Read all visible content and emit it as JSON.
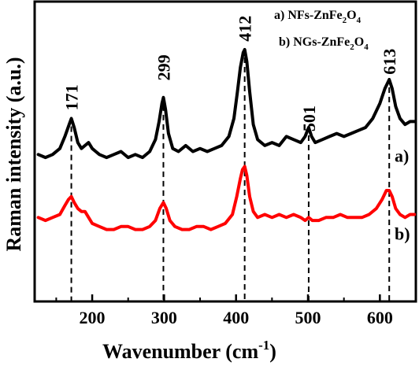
{
  "chart_data": {
    "type": "line",
    "xlabel": "Wavenumber  (cm",
    "xlabel_sup": "-1",
    "xlabel_close": ")",
    "ylabel": "Raman intensity (a.u.)",
    "xlim": [
      120,
      650
    ],
    "ylim": [
      0,
      1
    ],
    "x_ticks": [
      200,
      300,
      400,
      500,
      600
    ],
    "x_tick_labels": [
      "200",
      "300",
      "400",
      "500",
      "600"
    ],
    "yticks_shown": false,
    "grid": false,
    "legend": [
      {
        "tag": "a) NFs-ZnFe",
        "sub1": "2",
        "mid": "O",
        "sub2": "4"
      },
      {
        "tag": "b) NGs-ZnFe",
        "sub1": "2",
        "mid": "O",
        "sub2": "4"
      }
    ],
    "legend_placement": "top-right",
    "peaks": [
      {
        "x": 171,
        "label": "171"
      },
      {
        "x": 299,
        "label": "299"
      },
      {
        "x": 412,
        "label": "412"
      },
      {
        "x": 501,
        "label": "501"
      },
      {
        "x": 613,
        "label": "613"
      }
    ],
    "series": [
      {
        "tag": "a)",
        "color": "#000000",
        "points": [
          [
            125,
            0.49
          ],
          [
            135,
            0.48
          ],
          [
            145,
            0.49
          ],
          [
            155,
            0.51
          ],
          [
            162,
            0.55
          ],
          [
            168,
            0.59
          ],
          [
            171,
            0.61
          ],
          [
            175,
            0.58
          ],
          [
            180,
            0.53
          ],
          [
            185,
            0.51
          ],
          [
            190,
            0.52
          ],
          [
            195,
            0.53
          ],
          [
            200,
            0.51
          ],
          [
            205,
            0.5
          ],
          [
            210,
            0.49
          ],
          [
            220,
            0.48
          ],
          [
            230,
            0.49
          ],
          [
            240,
            0.5
          ],
          [
            250,
            0.48
          ],
          [
            260,
            0.49
          ],
          [
            270,
            0.48
          ],
          [
            280,
            0.5
          ],
          [
            288,
            0.54
          ],
          [
            293,
            0.6
          ],
          [
            297,
            0.66
          ],
          [
            299,
            0.68
          ],
          [
            302,
            0.64
          ],
          [
            306,
            0.56
          ],
          [
            312,
            0.51
          ],
          [
            320,
            0.5
          ],
          [
            330,
            0.52
          ],
          [
            340,
            0.5
          ],
          [
            350,
            0.51
          ],
          [
            360,
            0.5
          ],
          [
            370,
            0.51
          ],
          [
            380,
            0.52
          ],
          [
            390,
            0.55
          ],
          [
            397,
            0.61
          ],
          [
            402,
            0.7
          ],
          [
            406,
            0.78
          ],
          [
            410,
            0.83
          ],
          [
            412,
            0.84
          ],
          [
            415,
            0.8
          ],
          [
            419,
            0.7
          ],
          [
            424,
            0.59
          ],
          [
            430,
            0.54
          ],
          [
            440,
            0.52
          ],
          [
            450,
            0.53
          ],
          [
            460,
            0.52
          ],
          [
            470,
            0.55
          ],
          [
            480,
            0.54
          ],
          [
            490,
            0.53
          ],
          [
            496,
            0.55
          ],
          [
            501,
            0.58
          ],
          [
            505,
            0.55
          ],
          [
            510,
            0.53
          ],
          [
            520,
            0.54
          ],
          [
            530,
            0.55
          ],
          [
            540,
            0.56
          ],
          [
            550,
            0.55
          ],
          [
            560,
            0.56
          ],
          [
            570,
            0.57
          ],
          [
            580,
            0.58
          ],
          [
            590,
            0.61
          ],
          [
            600,
            0.66
          ],
          [
            607,
            0.71
          ],
          [
            611,
            0.73
          ],
          [
            613,
            0.74
          ],
          [
            617,
            0.71
          ],
          [
            622,
            0.65
          ],
          [
            628,
            0.61
          ],
          [
            635,
            0.59
          ],
          [
            642,
            0.6
          ],
          [
            648,
            0.6
          ]
        ]
      },
      {
        "tag": "b)",
        "color": "#ff0000",
        "points": [
          [
            125,
            0.28
          ],
          [
            135,
            0.27
          ],
          [
            145,
            0.28
          ],
          [
            155,
            0.29
          ],
          [
            162,
            0.32
          ],
          [
            167,
            0.34
          ],
          [
            171,
            0.35
          ],
          [
            175,
            0.33
          ],
          [
            180,
            0.31
          ],
          [
            185,
            0.3
          ],
          [
            190,
            0.3
          ],
          [
            195,
            0.28
          ],
          [
            200,
            0.26
          ],
          [
            210,
            0.25
          ],
          [
            220,
            0.24
          ],
          [
            230,
            0.24
          ],
          [
            240,
            0.25
          ],
          [
            250,
            0.25
          ],
          [
            260,
            0.24
          ],
          [
            270,
            0.24
          ],
          [
            280,
            0.25
          ],
          [
            288,
            0.27
          ],
          [
            294,
            0.31
          ],
          [
            299,
            0.33
          ],
          [
            303,
            0.31
          ],
          [
            308,
            0.27
          ],
          [
            315,
            0.25
          ],
          [
            325,
            0.24
          ],
          [
            335,
            0.24
          ],
          [
            345,
            0.25
          ],
          [
            355,
            0.25
          ],
          [
            365,
            0.24
          ],
          [
            375,
            0.25
          ],
          [
            385,
            0.26
          ],
          [
            395,
            0.29
          ],
          [
            401,
            0.35
          ],
          [
            406,
            0.41
          ],
          [
            409,
            0.44
          ],
          [
            412,
            0.45
          ],
          [
            415,
            0.42
          ],
          [
            419,
            0.35
          ],
          [
            424,
            0.3
          ],
          [
            430,
            0.28
          ],
          [
            440,
            0.29
          ],
          [
            450,
            0.28
          ],
          [
            460,
            0.29
          ],
          [
            470,
            0.28
          ],
          [
            480,
            0.29
          ],
          [
            490,
            0.28
          ],
          [
            496,
            0.27
          ],
          [
            501,
            0.28
          ],
          [
            506,
            0.27
          ],
          [
            515,
            0.27
          ],
          [
            525,
            0.28
          ],
          [
            535,
            0.28
          ],
          [
            545,
            0.29
          ],
          [
            555,
            0.28
          ],
          [
            565,
            0.28
          ],
          [
            575,
            0.28
          ],
          [
            585,
            0.29
          ],
          [
            595,
            0.31
          ],
          [
            603,
            0.34
          ],
          [
            609,
            0.37
          ],
          [
            613,
            0.37
          ],
          [
            617,
            0.35
          ],
          [
            622,
            0.31
          ],
          [
            628,
            0.29
          ],
          [
            635,
            0.28
          ],
          [
            642,
            0.29
          ],
          [
            648,
            0.29
          ]
        ]
      }
    ]
  }
}
